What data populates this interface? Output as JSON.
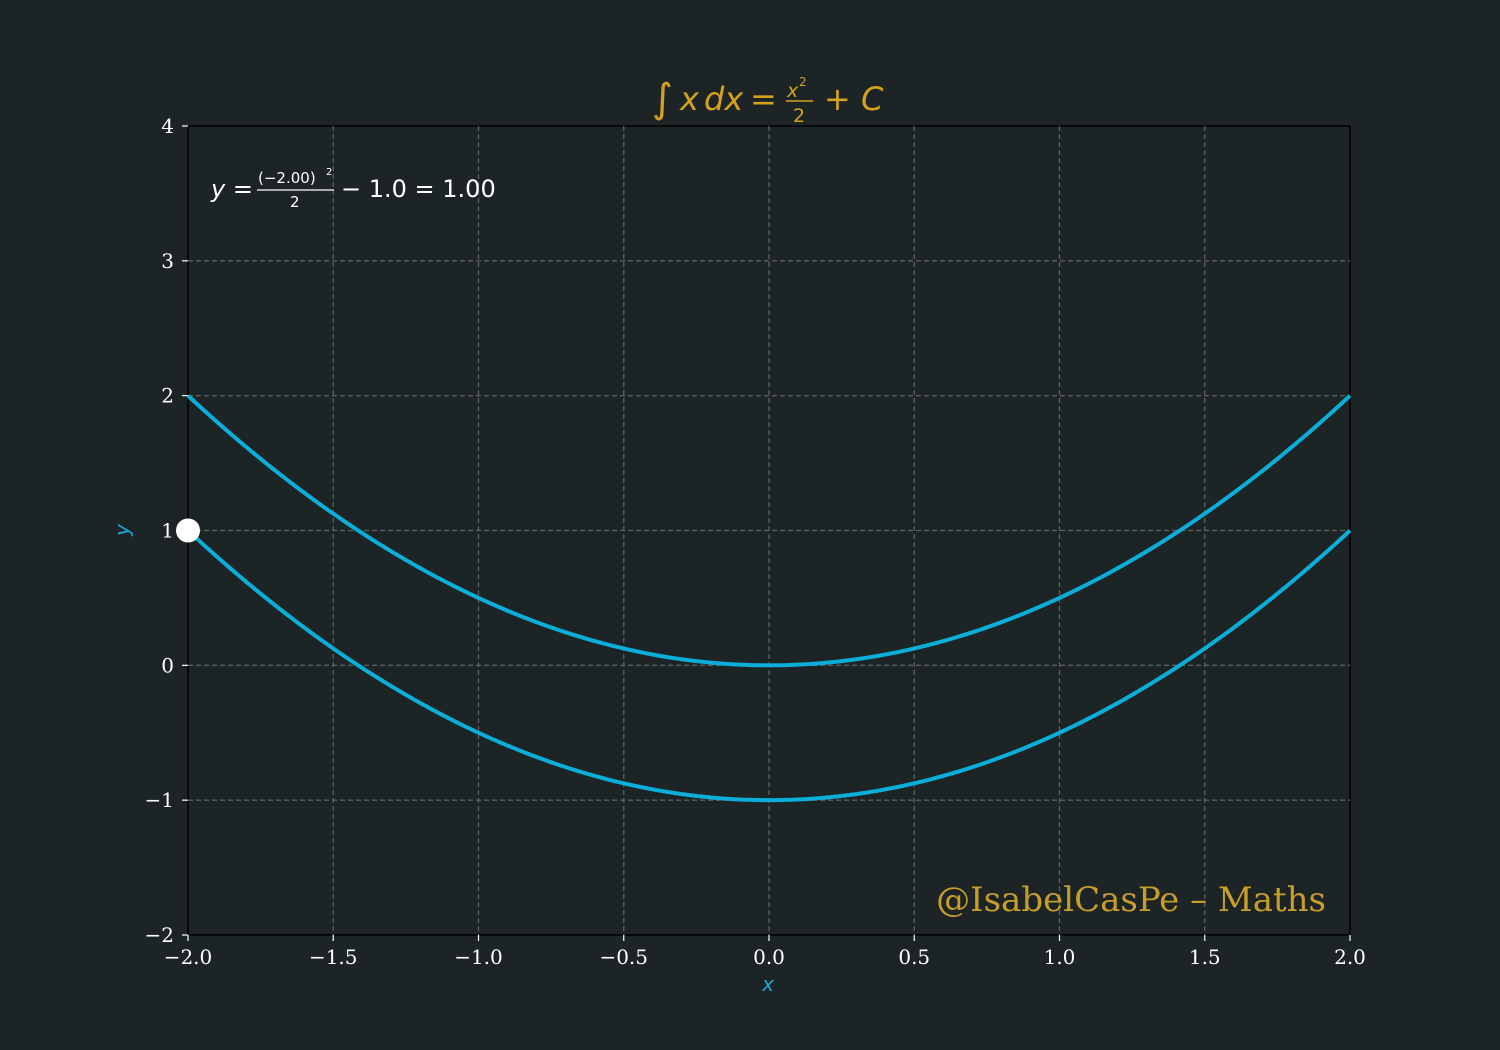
{
  "chart_data": {
    "type": "line",
    "title": {
      "integral": "∫",
      "integrand": "x",
      "differential": "dx",
      "equals": "=",
      "numerator": "x",
      "power": "2",
      "denominator": "2",
      "constant": "+ C"
    },
    "xlabel": "x",
    "ylabel": "y",
    "xlim": [
      -2.0,
      2.0
    ],
    "ylim": [
      -2,
      4
    ],
    "xticks": [
      -2.0,
      -1.5,
      -1.0,
      -0.5,
      0.0,
      0.5,
      1.0,
      1.5,
      2.0
    ],
    "xtick_labels": [
      "−2.0",
      "−1.5",
      "−1.0",
      "−0.5",
      "0.0",
      "0.5",
      "1.0",
      "1.5",
      "2.0"
    ],
    "yticks": [
      -2,
      -1,
      0,
      1,
      2,
      3,
      4
    ],
    "ytick_labels": [
      "−2",
      "−1",
      "0",
      "1",
      "2",
      "3",
      "4"
    ],
    "grid": true,
    "series": [
      {
        "name": "y = x²/2",
        "function": "x^2/2",
        "offset": 0.0
      },
      {
        "name": "y = x²/2 − 1.0",
        "function": "x^2/2 - 1.0",
        "offset": -1.0
      }
    ],
    "highlight_point": {
      "x": -2.0,
      "y": 1.0
    },
    "annotation": {
      "lhs": "y =",
      "numerator": "(−2.00)",
      "power": "2",
      "denominator": "2",
      "rhs": "− 1.0 = 1.00"
    },
    "watermark": "@IsabelCasPe – Maths",
    "colors": {
      "background": "#1d2426",
      "curve": "#0aaed8",
      "title": "#d4a21e",
      "axis_label": "#1aa7d6",
      "grid": "#5a5f60",
      "text": "#ffffff",
      "watermark": "#c89e2a"
    }
  }
}
